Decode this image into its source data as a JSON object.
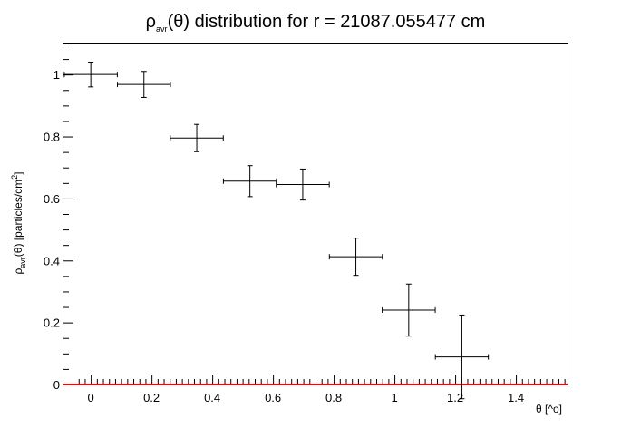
{
  "chart_data": {
    "type": "scatter",
    "title": {
      "rho": "ρ",
      "sub": "avr",
      "rest": "(θ) distribution for r = 21087.055477 cm"
    },
    "xlabel": "θ [^o]",
    "ylabel": {
      "rho": "ρ",
      "sub": "avr",
      "mid": "(θ) [particles/cm",
      "sup": "2",
      "end": "]"
    },
    "xlim": [
      -0.09,
      1.57
    ],
    "ylim": [
      0,
      1.1
    ],
    "x_ticks": [
      {
        "v": 0,
        "label": "0"
      },
      {
        "v": 0.2,
        "label": "0.2"
      },
      {
        "v": 0.4,
        "label": "0.4"
      },
      {
        "v": 0.6,
        "label": "0.6"
      },
      {
        "v": 0.8,
        "label": "0.8"
      },
      {
        "v": 1.0,
        "label": "1"
      },
      {
        "v": 1.2,
        "label": "1.2"
      },
      {
        "v": 1.4,
        "label": "1.4"
      }
    ],
    "y_ticks": [
      {
        "v": 0,
        "label": "0"
      },
      {
        "v": 0.2,
        "label": "0.2"
      },
      {
        "v": 0.4,
        "label": "0.4"
      },
      {
        "v": 0.6,
        "label": "0.6"
      },
      {
        "v": 0.8,
        "label": "0.8"
      },
      {
        "v": 1.0,
        "label": "1"
      }
    ],
    "points": [
      {
        "x": 0.0,
        "xerr": 0.0873,
        "y": 1.0,
        "yerr": 0.04
      },
      {
        "x": 0.175,
        "xerr": 0.0873,
        "y": 0.968,
        "yerr": 0.042
      },
      {
        "x": 0.349,
        "xerr": 0.0873,
        "y": 0.795,
        "yerr": 0.044
      },
      {
        "x": 0.524,
        "xerr": 0.0873,
        "y": 0.656,
        "yerr": 0.05
      },
      {
        "x": 0.698,
        "xerr": 0.0873,
        "y": 0.645,
        "yerr": 0.05
      },
      {
        "x": 0.873,
        "xerr": 0.0873,
        "y": 0.412,
        "yerr": 0.06
      },
      {
        "x": 1.047,
        "xerr": 0.0873,
        "y": 0.24,
        "yerr": 0.084
      },
      {
        "x": 1.222,
        "xerr": 0.0873,
        "y": 0.089,
        "yerr": 0.135
      }
    ],
    "baseline": {
      "y": 0,
      "color": "#ff0000"
    },
    "colors": {
      "points": "#000000",
      "axis": "#000000",
      "baseline": "#ff0000"
    },
    "grid": false
  }
}
